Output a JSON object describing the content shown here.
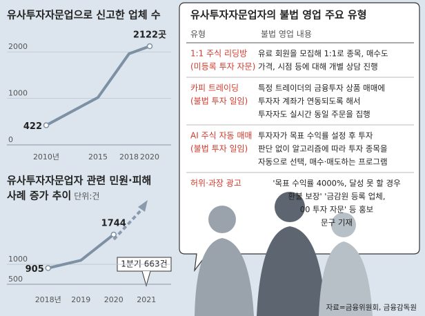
{
  "chart_data": [
    {
      "type": "line",
      "title": [
        "유사투자자문업으로 신고한 업체 수"
      ],
      "x": [
        2010,
        2015,
        2018,
        2020
      ],
      "xlim": [
        2007,
        2022
      ],
      "xticks": [
        {
          "value": 2010,
          "label": "2010년"
        },
        2015,
        2018,
        2020
      ],
      "series": [
        {
          "color": "#7d90a4",
          "values": [
            422,
            1020,
            1960,
            2122
          ],
          "value_labels": [
            "422",
            null,
            null,
            "2122곳"
          ]
        }
      ],
      "ylim": [
        0,
        2300
      ],
      "yticks": [
        0,
        1000,
        2000
      ],
      "grid": true
    },
    {
      "type": "line",
      "title": [
        "유사투자자문업자 관련 민원·피해",
        "사례 증가 추이"
      ],
      "subtitle": "단위:건",
      "categories": [
        "2018년",
        "2019",
        "2020",
        "2021"
      ],
      "series": [
        {
          "color": "#7d90a4",
          "values": [
            905,
            1100,
            1744,
            null
          ],
          "value_labels": [
            "905",
            null,
            "1744",
            null
          ]
        }
      ],
      "ylim": [
        500,
        2400
      ],
      "yticks": [
        500,
        1000
      ],
      "grid": true,
      "annotation": "1분기 663건"
    }
  ],
  "table": {
    "title": "유사투자자문업자의 불법 영업 주요 유형",
    "header": [
      "유형",
      "불법 영업 내용"
    ],
    "rows": [
      {
        "type": [
          "1:1 주식 리딩방",
          "(미등록 투자 자문)"
        ],
        "content": [
          "유료 회원을 모집해 1:1로 종목, 매수도",
          "가격, 시점 등에 대해 개별 상담 진행"
        ]
      },
      {
        "type": [
          "카피 트레이딩",
          "(불법 투자 일임)"
        ],
        "content": [
          "특정 트레이더의 금융투자 상품 매매에",
          "투자자 계좌가 연동되도록 해서",
          "투자자도 실시간 동일 주문을 집행"
        ]
      },
      {
        "type": [
          "AI 주식 자동 매매",
          "(불법 투자 일임)"
        ],
        "content": [
          "투자자가 목표 수익률 설정 후 투자",
          "판단 없이 알고리즘에 따라 투자 종목을",
          "자동으로 선택, 매수·매도하는 프로그램"
        ]
      },
      {
        "type": [
          "허위·과장 광고"
        ],
        "content": [
          "'목표 수익률 4000%, 달성 못 할 경우",
          "환불 보장' '금감원 등록 업체,",
          "00 투자 자문' 등 홍보",
          "문구 기재"
        ]
      }
    ]
  },
  "source": "자료=금융위원회, 금융감독원"
}
